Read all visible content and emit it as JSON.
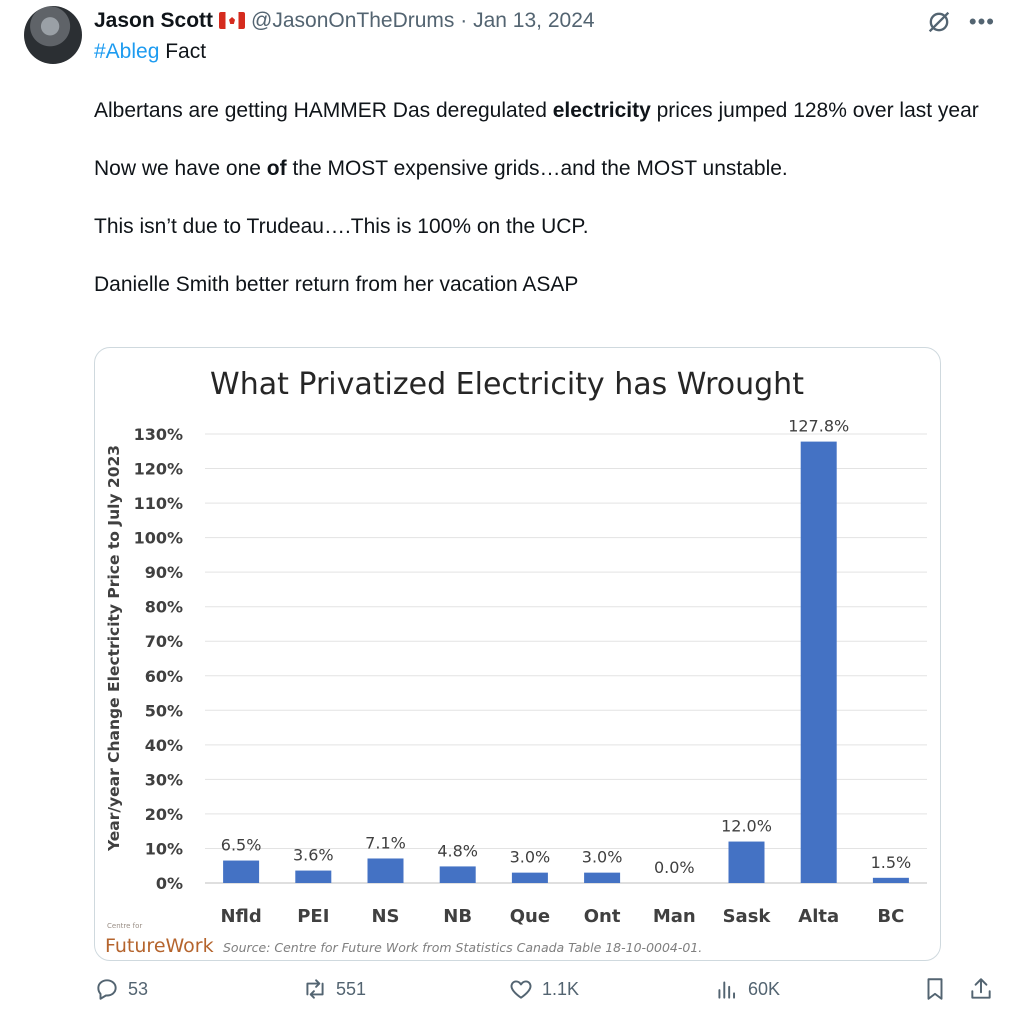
{
  "tweet": {
    "author_name": "Jason Scott",
    "handle": "@JasonOnTheDrums",
    "separator": "·",
    "date": "Jan 13, 2024",
    "hashtag": "#Ableg",
    "hashtag_suffix": " Fact",
    "line1_pre": "Albertans are getting HAMMER Das deregulated ",
    "line1_bold": "electricity",
    "line1_post": " prices jumped 128% over last year",
    "line2_pre": "Now we have one ",
    "line2_bold": "of",
    "line2_post": " the MOST expensive grids…and the MOST unstable.",
    "line3": "This isn’t due to Trudeau….This is 100% on the UCP.",
    "line4": "Danielle Smith better return from her vacation ASAP"
  },
  "actions": {
    "replies": "53",
    "reposts": "551",
    "likes": "1.1K",
    "views": "60K"
  },
  "icons": {
    "reply": "reply-icon",
    "repost": "repost-icon",
    "like": "heart-icon",
    "views": "views-icon",
    "bookmark": "bookmark-icon",
    "share": "share-icon",
    "grok": "grok-icon",
    "more": "more-icon"
  },
  "colors": {
    "bar": "#4472c4",
    "link": "#1d9bf0",
    "muted": "#536471"
  },
  "chart_data": {
    "type": "bar",
    "title": "What Privatized Electricity has Wrought",
    "ylabel": "Year/year Change Electricity Price to July 2023",
    "xlabel": "",
    "categories": [
      "Nfld",
      "PEI",
      "NS",
      "NB",
      "Que",
      "Ont",
      "Man",
      "Sask",
      "Alta",
      "BC"
    ],
    "values": [
      6.5,
      3.6,
      7.1,
      4.8,
      3.0,
      3.0,
      0.0,
      12.0,
      127.8,
      1.5
    ],
    "value_labels": [
      "6.5%",
      "3.6%",
      "7.1%",
      "4.8%",
      "3.0%",
      "3.0%",
      "0.0%",
      "12.0%",
      "127.8%",
      "1.5%"
    ],
    "y_ticks": [
      "0%",
      "10%",
      "20%",
      "30%",
      "40%",
      "50%",
      "60%",
      "70%",
      "80%",
      "90%",
      "100%",
      "110%",
      "120%",
      "130%"
    ],
    "ylim": [
      0,
      130
    ],
    "grid": true,
    "source": "Source: Centre for Future Work from Statistics Canada Table 18-10-0004-01.",
    "logo_small": "Centre for",
    "logo_main": "FutureWork"
  }
}
